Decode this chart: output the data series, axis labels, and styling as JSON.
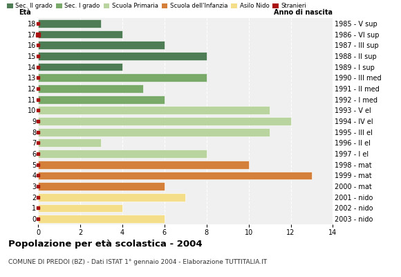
{
  "ages": [
    18,
    17,
    16,
    15,
    14,
    13,
    12,
    11,
    10,
    9,
    8,
    7,
    6,
    5,
    4,
    3,
    2,
    1,
    0
  ],
  "years": [
    "1985 - V sup",
    "1986 - VI sup",
    "1987 - III sup",
    "1988 - II sup",
    "1989 - I sup",
    "1990 - III med",
    "1991 - II med",
    "1992 - I med",
    "1993 - V el",
    "1994 - IV el",
    "1995 - III el",
    "1996 - II el",
    "1997 - I el",
    "1998 - mat",
    "1999 - mat",
    "2000 - mat",
    "2001 - nido",
    "2002 - nido",
    "2003 - nido"
  ],
  "values": [
    3,
    4,
    6,
    8,
    4,
    8,
    5,
    6,
    11,
    12,
    11,
    3,
    8,
    10,
    13,
    6,
    7,
    4,
    6
  ],
  "stranieri_marker": [
    0,
    1,
    0,
    0,
    0,
    0,
    0,
    0,
    0,
    0,
    0,
    0,
    0,
    0,
    0,
    0,
    0,
    0,
    0
  ],
  "categories": {
    "sec2": [
      18,
      17,
      16,
      15,
      14
    ],
    "sec1": [
      13,
      12,
      11
    ],
    "primaria": [
      10,
      9,
      8,
      7,
      6
    ],
    "infanzia": [
      5,
      4,
      3
    ],
    "nido": [
      2,
      1,
      0
    ]
  },
  "colors": {
    "sec2": "#4d7c55",
    "sec1": "#7aaa6a",
    "primaria": "#b9d49e",
    "infanzia": "#d4803a",
    "nido": "#f5de8a",
    "stranieri": "#aa1111"
  },
  "legend_labels": [
    "Sec. II grado",
    "Sec. I grado",
    "Scuola Primaria",
    "Scuola dell'Infanzia",
    "Asilo Nido",
    "Stranieri"
  ],
  "title": "Popolazione per età scolastica - 2004",
  "subtitle": "COMUNE DI PREDOI (BZ) - Dati ISTAT 1° gennaio 2004 - Elaborazione TUTTITALIA.IT",
  "label_eta": "Età",
  "label_anno": "Anno di nascita",
  "xlim": [
    0,
    14
  ],
  "xticks": [
    0,
    2,
    4,
    6,
    8,
    10,
    12,
    14
  ],
  "bg_color": "#ffffff",
  "plot_bg_color": "#f0f0f0"
}
